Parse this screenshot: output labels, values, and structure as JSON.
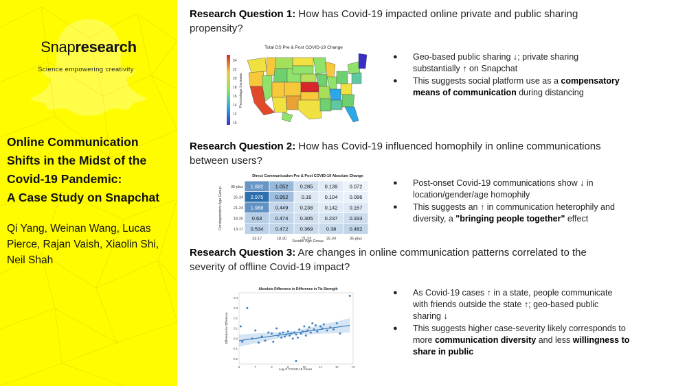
{
  "brand": {
    "name_thin": "Snap",
    "name_bold": "research",
    "tagline": "Science empowering creativity"
  },
  "paper": {
    "title_lines": [
      "Online Communication",
      "Shifts in the Midst of the",
      "Covid-19 Pandemic:",
      "A Case Study on Snapchat"
    ],
    "author_lines": [
      "Qi Yang, Weinan Wang, Lucas",
      "Pierce, Rajan Vaish, Xiaolin Shi,",
      "Neil Shah"
    ]
  },
  "rq1": {
    "label": "Research Question 1:",
    "text_line1": " How has Covid-19 impacted online private and public sharing",
    "text_line2": "propensity?",
    "bullets": [
      {
        "line1": "Geo-based public sharing ↓; private sharing",
        "line2": "substantially ↑ on Snapchat"
      },
      {
        "pre": "This suggests social platform use as a ",
        "bold1": "compensatory",
        "bold2": "means of communication",
        "post": " during distancing"
      }
    ],
    "figure": {
      "title": "Total DS Pre & Post COVID-19 Change",
      "colorbar_label": "Percentage Increase",
      "colorbar_ticks": [
        "24",
        "22",
        "20",
        "18",
        "16",
        "14",
        "12",
        "10"
      ]
    }
  },
  "rq2": {
    "label": "Research Question 2:",
    "text_line1": " How has Covid-19 influenced homophily in online communications",
    "text_line2": "between users?",
    "bullets": [
      {
        "line1": "Post-onset Covid-19 communications show ↓ in",
        "line2": "location/gender/age homophily"
      },
      {
        "line1": "This suggests an ↑ in communication heterophily and",
        "pre": "diversity, a ",
        "bold": "\"bringing people together\"",
        "post": " effect"
      }
    ],
    "figure": {
      "title": "Direct Communication Pre & Post COVID-19 Absolute Change",
      "ylabel": "Correspondent Age Group",
      "xlabel": "Sender Age Group",
      "rows": [
        "35-plus",
        "25-34",
        "21-24",
        "18-20",
        "13-17"
      ],
      "cols": [
        "13-17",
        "18-20",
        "21-24",
        "25-34",
        "35-plus"
      ]
    }
  },
  "rq3": {
    "label": "Research Question 3:",
    "text_line1": " Are changes in online communication patterns correlated to the",
    "text_line2": "severity of offline Covid-19 impact?",
    "bullets": [
      {
        "line1": "As Covid-19 cases ↑ in a state, people communicate",
        "line2": "with friends outside the state ↑; geo-based public",
        "line3": "sharing ↓"
      },
      {
        "line1": "This suggests higher case-severity likely corresponds to",
        "pre": "more ",
        "bold1": "communication diversity",
        "mid": " and less ",
        "bold2": "willingness to",
        "bold3": "share in public"
      }
    ],
    "figure": {
      "title": "Absolute Difference in Difference in Tie Strength",
      "xlabel": "Log of COVID-19 Cases",
      "ylabel": "Difference in Difference"
    }
  },
  "chart_data": [
    {
      "type": "heatmap",
      "title": "Direct Communication Pre & Post COVID-19 Absolute Change",
      "xlabel": "Sender Age Group",
      "ylabel": "Correspondent Age Group",
      "x": [
        "13-17",
        "18-20",
        "21-24",
        "25-34",
        "35-plus"
      ],
      "y": [
        "35-plus",
        "25-34",
        "21-24",
        "18-20",
        "13-17"
      ],
      "values": [
        [
          1.882,
          1.052,
          0.285,
          0.139,
          0.072
        ],
        [
          2.975,
          0.952,
          0.16,
          0.104,
          0.086
        ],
        [
          1.988,
          0.449,
          0.238,
          0.142,
          0.157
        ],
        [
          0.63,
          0.474,
          0.305,
          0.237,
          0.333
        ],
        [
          0.534,
          0.472,
          0.369,
          0.38,
          0.482
        ]
      ],
      "labels": [
        [
          "1.882",
          "1.052",
          "0.285",
          "0.139",
          "0.072"
        ],
        [
          "2.975",
          "0.952",
          "0.16",
          "0.104",
          "0.086"
        ],
        [
          "1.988",
          "0.449",
          "0.238",
          "0.142",
          "0.157"
        ],
        [
          "0.63",
          "0.474",
          "0.305",
          "0.237",
          "0.333"
        ],
        [
          "0.534",
          "0.472",
          "0.369",
          "0.38",
          "0.482"
        ]
      ],
      "colors": {
        "low": "#ecf3fb",
        "high": "#2f6fae"
      }
    },
    {
      "type": "scatter",
      "title": "Absolute Difference in Difference in Tie Strength",
      "xlabel": "Log of COVID-19 Cases",
      "ylabel": "Difference in Difference",
      "xlim": [
        6,
        13
      ],
      "ylim": [
        -0.25,
        0.45
      ],
      "xticks": [
        "6",
        "7",
        "8",
        "9",
        "10",
        "11",
        "12",
        "13"
      ],
      "yticks": [
        "0.4",
        "0.3",
        "0.2",
        "0.1",
        "0.0",
        "-0.1",
        "-0.2"
      ],
      "xtick_values": [
        6,
        7,
        8,
        9,
        10,
        11,
        12,
        13
      ],
      "ytick_values": [
        0.4,
        0.3,
        0.2,
        0.1,
        0.0,
        -0.1,
        -0.2
      ],
      "points": [
        [
          6.1,
          0.12
        ],
        [
          6.2,
          -0.03
        ],
        [
          6.5,
          0.3
        ],
        [
          6.8,
          0.0
        ],
        [
          7.0,
          0.08
        ],
        [
          7.2,
          -0.04
        ],
        [
          7.4,
          0.02
        ],
        [
          7.6,
          -0.02
        ],
        [
          7.8,
          0.06
        ],
        [
          8.0,
          0.05
        ],
        [
          8.1,
          -0.03
        ],
        [
          8.3,
          0.1
        ],
        [
          8.4,
          0.03
        ],
        [
          8.5,
          0.05
        ],
        [
          8.6,
          0.01
        ],
        [
          8.7,
          0.06
        ],
        [
          8.8,
          0.02
        ],
        [
          8.9,
          0.04
        ],
        [
          9.0,
          0.07
        ],
        [
          9.1,
          0.03
        ],
        [
          9.2,
          0.05
        ],
        [
          9.3,
          0.0
        ],
        [
          9.4,
          0.06
        ],
        [
          9.5,
          0.04
        ],
        [
          9.6,
          0.01
        ],
        [
          9.7,
          0.09
        ],
        [
          9.8,
          0.05
        ],
        [
          9.9,
          0.07
        ],
        [
          10.0,
          0.12
        ],
        [
          10.1,
          0.03
        ],
        [
          10.2,
          0.08
        ],
        [
          10.3,
          0.11
        ],
        [
          10.4,
          0.06
        ],
        [
          10.5,
          0.15
        ],
        [
          10.6,
          0.09
        ],
        [
          10.7,
          0.13
        ],
        [
          10.8,
          0.07
        ],
        [
          11.0,
          0.12
        ],
        [
          11.1,
          0.1
        ],
        [
          11.2,
          0.14
        ],
        [
          11.4,
          0.08
        ],
        [
          11.6,
          0.11
        ],
        [
          11.8,
          0.09
        ],
        [
          12.0,
          0.15
        ],
        [
          12.2,
          0.05
        ],
        [
          12.8,
          0.42
        ],
        [
          9.5,
          -0.22
        ]
      ],
      "fit": {
        "x": [
          6,
          12.8
        ],
        "y": [
          -0.02,
          0.13
        ]
      },
      "colors": {
        "points": "#3f7fbf",
        "line": "#2a6fb0",
        "band": "#b9d3ee"
      }
    }
  ]
}
